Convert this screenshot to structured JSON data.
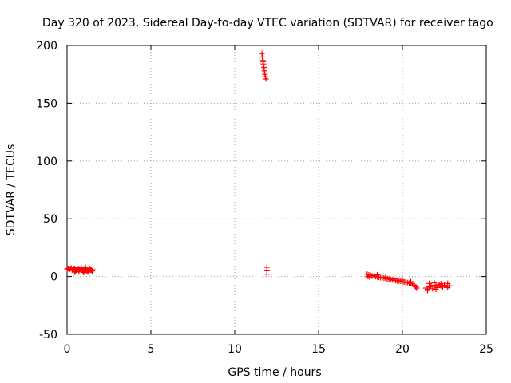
{
  "chart_data": {
    "type": "scatter",
    "title": "Day 320 of 2023, Sidereal Day-to-day VTEC variation (SDTVAR) for receiver tago",
    "xlabel": "GPS time / hours",
    "ylabel": "SDTVAR / TECUs",
    "xlim": [
      0,
      25
    ],
    "ylim": [
      -50,
      200
    ],
    "xticks": [
      0,
      5,
      10,
      15,
      20,
      25
    ],
    "yticks": [
      -50,
      0,
      50,
      100,
      150,
      200
    ],
    "grid": true,
    "marker": "plus",
    "color": "#ff0000",
    "series": [
      {
        "name": "SDTVAR",
        "points": [
          [
            0.0,
            6.5
          ],
          [
            0.05,
            6.8
          ],
          [
            0.1,
            7.0
          ],
          [
            0.15,
            6.2
          ],
          [
            0.2,
            6.9
          ],
          [
            0.25,
            7.3
          ],
          [
            0.3,
            6.0
          ],
          [
            0.35,
            5.4
          ],
          [
            0.4,
            6.6
          ],
          [
            0.45,
            7.1
          ],
          [
            0.5,
            4.8
          ],
          [
            0.55,
            5.5
          ],
          [
            0.6,
            6.3
          ],
          [
            0.65,
            6.0
          ],
          [
            0.7,
            6.9
          ],
          [
            0.75,
            5.8
          ],
          [
            0.8,
            6.4
          ],
          [
            0.85,
            7.2
          ],
          [
            0.9,
            6.1
          ],
          [
            0.95,
            4.9
          ],
          [
            1.0,
            5.6
          ],
          [
            1.05,
            6.8
          ],
          [
            1.1,
            6.5
          ],
          [
            1.15,
            5.2
          ],
          [
            1.2,
            4.2
          ],
          [
            1.25,
            5.0
          ],
          [
            1.3,
            6.2
          ],
          [
            1.35,
            6.9
          ],
          [
            1.4,
            6.0
          ],
          [
            1.45,
            5.5
          ],
          [
            1.5,
            4.8
          ],
          [
            1.55,
            5.9
          ],
          [
            0.45,
            3.8
          ],
          [
            0.7,
            4.1
          ],
          [
            1.0,
            3.5
          ],
          [
            1.3,
            3.7
          ],
          [
            0.6,
            7.6
          ],
          [
            1.1,
            7.8
          ],
          [
            11.62,
            193
          ],
          [
            11.65,
            190
          ],
          [
            11.68,
            187
          ],
          [
            11.71,
            184
          ],
          [
            11.74,
            181
          ],
          [
            11.77,
            178
          ],
          [
            11.8,
            175
          ],
          [
            11.83,
            173
          ],
          [
            11.86,
            171
          ],
          [
            11.7,
            186
          ],
          [
            11.92,
            8.0
          ],
          [
            11.92,
            5.0
          ],
          [
            11.92,
            2.0
          ],
          [
            17.9,
            2.0
          ],
          [
            17.95,
            0.0
          ],
          [
            18.0,
            1.5
          ],
          [
            18.05,
            -0.5
          ],
          [
            18.1,
            1.0
          ],
          [
            18.2,
            0.5
          ],
          [
            18.3,
            0.8
          ],
          [
            18.4,
            0.0
          ],
          [
            18.5,
            -0.3
          ],
          [
            18.6,
            -0.6
          ],
          [
            18.7,
            -1.0
          ],
          [
            18.8,
            -0.8
          ],
          [
            18.9,
            -1.3
          ],
          [
            19.0,
            -1.6
          ],
          [
            19.1,
            -2.0
          ],
          [
            19.2,
            -2.2
          ],
          [
            19.3,
            -2.6
          ],
          [
            19.4,
            -2.9
          ],
          [
            19.5,
            -3.1
          ],
          [
            19.6,
            -3.4
          ],
          [
            19.7,
            -3.7
          ],
          [
            19.8,
            -4.0
          ],
          [
            19.9,
            -4.2
          ],
          [
            20.0,
            -4.5
          ],
          [
            20.1,
            -4.8
          ],
          [
            20.2,
            -5.0
          ],
          [
            20.3,
            -5.3
          ],
          [
            20.4,
            -5.6
          ],
          [
            20.5,
            -6.0
          ],
          [
            20.6,
            -6.4
          ],
          [
            20.7,
            -7.5
          ],
          [
            20.8,
            -9.0
          ],
          [
            20.85,
            -10.0
          ],
          [
            18.5,
            1.5
          ],
          [
            19.0,
            -0.5
          ],
          [
            19.5,
            -2.0
          ],
          [
            20.0,
            -3.0
          ],
          [
            20.5,
            -4.5
          ],
          [
            21.4,
            -10.0
          ],
          [
            21.5,
            -11.0
          ],
          [
            21.6,
            -9.0
          ],
          [
            21.7,
            -8.0
          ],
          [
            21.8,
            -10.5
          ],
          [
            21.9,
            -7.5
          ],
          [
            22.0,
            -8.5
          ],
          [
            22.1,
            -9.5
          ],
          [
            22.2,
            -7.0
          ],
          [
            22.3,
            -8.0
          ],
          [
            22.4,
            -9.0
          ],
          [
            22.5,
            -7.5
          ],
          [
            22.6,
            -8.5
          ],
          [
            22.7,
            -9.5
          ],
          [
            22.8,
            -8.0
          ],
          [
            21.6,
            -6.0
          ],
          [
            21.9,
            -5.5
          ],
          [
            22.3,
            -6.2
          ],
          [
            22.7,
            -6.0
          ],
          [
            21.5,
            -12.0
          ],
          [
            22.0,
            -11.0
          ]
        ]
      }
    ]
  }
}
